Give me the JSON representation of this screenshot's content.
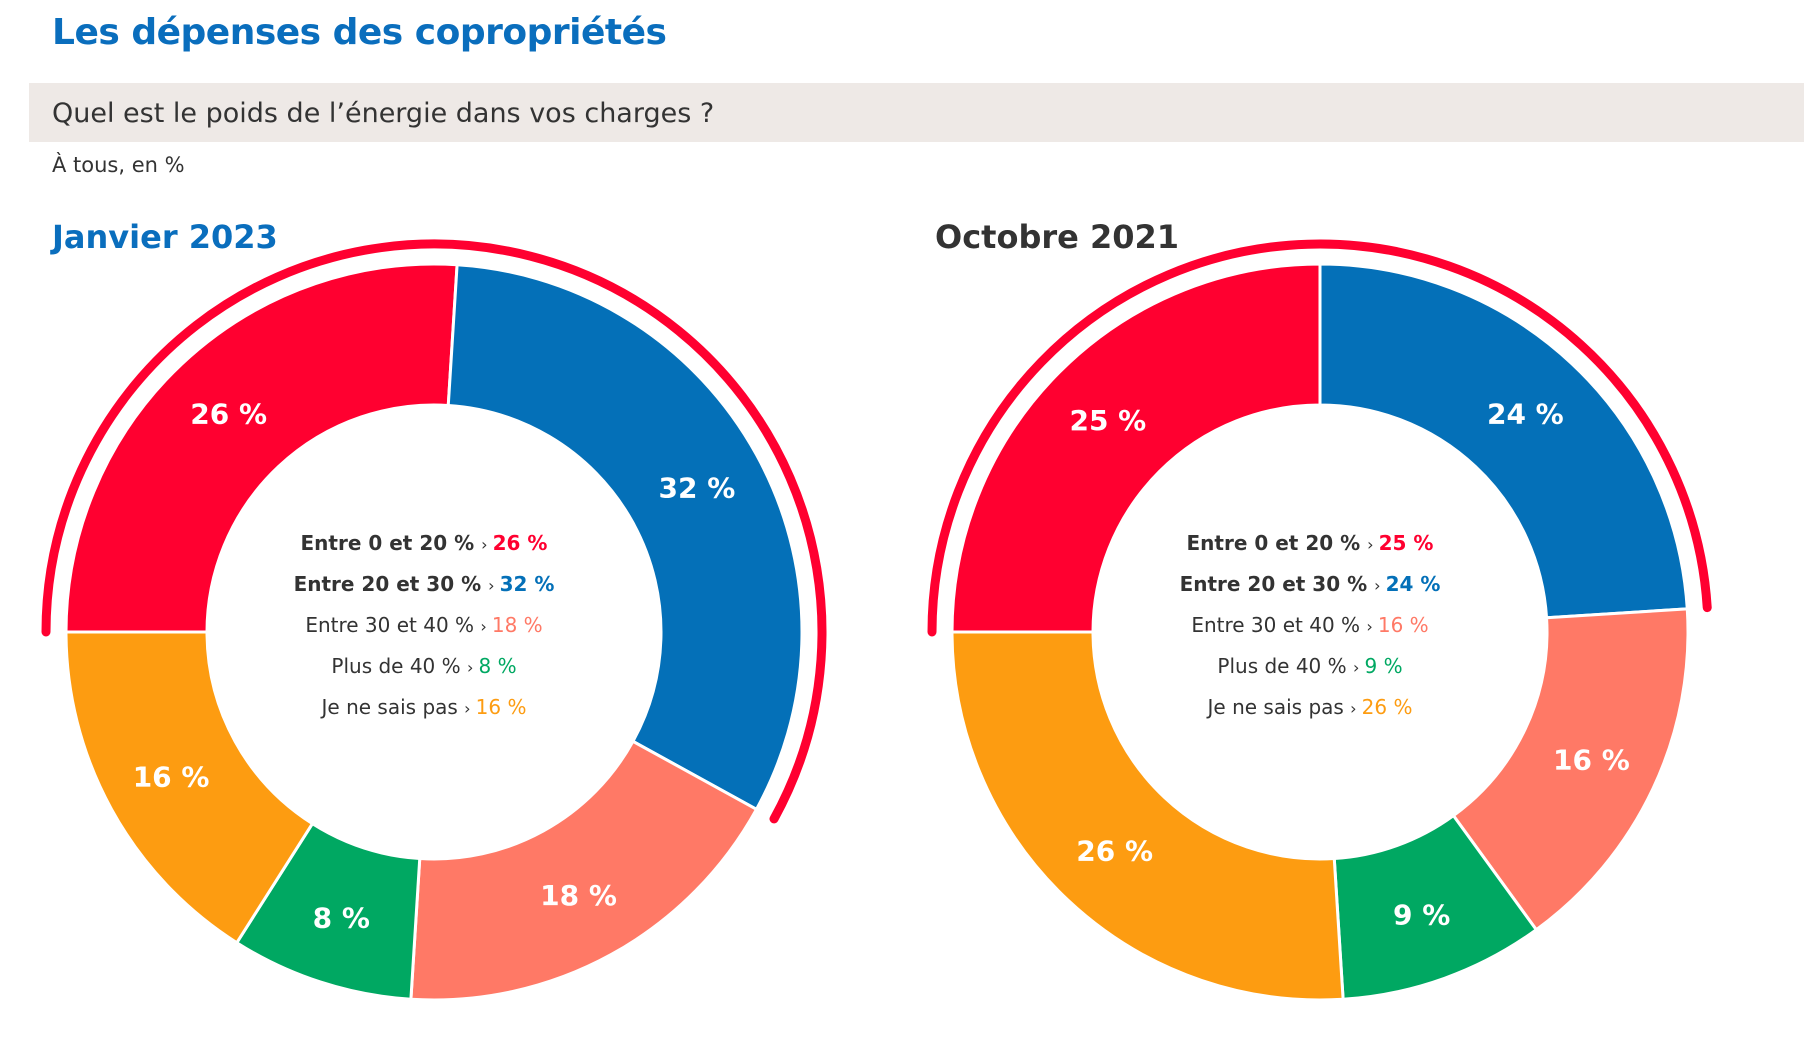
{
  "header": {
    "title": "Les dépenses des copropriétés",
    "question": "Quel est le poids de l’énergie dans vos charges ?",
    "base": "À tous, en %"
  },
  "colors": {
    "title_blue": "#0a6ebd",
    "red": "#ff0030",
    "blue": "#0470b8",
    "salmon": "#ff7966",
    "green": "#00a862",
    "orange": "#fd9c11",
    "band": "#eee9e6",
    "text": "#333333"
  },
  "legend_separator": "›",
  "chart_data": [
    {
      "type": "pie",
      "variant": "donut",
      "title": "Janvier 2023",
      "title_color": "#0a6ebd",
      "categories": [
        "Entre 0 et 20 %",
        "Entre 20 et 30 %",
        "Entre 30 et 40 %",
        "Plus de 40 %",
        "Je ne sais pas"
      ],
      "values": [
        26,
        32,
        18,
        8,
        16
      ],
      "value_labels": [
        "26 %",
        "32 %",
        "18 %",
        "8 %",
        "16 %"
      ],
      "colors": [
        "#ff0030",
        "#0470b8",
        "#ff7966",
        "#00a862",
        "#fd9c11"
      ],
      "bold": [
        true,
        true,
        false,
        false,
        false
      ],
      "highlight_arc": "Entre 0 et 30 %"
    },
    {
      "type": "pie",
      "variant": "donut",
      "title": "Octobre 2021",
      "title_color": "#333333",
      "categories": [
        "Entre 0 et 20 %",
        "Entre 20 et 30 %",
        "Entre 30 et 40 %",
        "Plus de 40 %",
        "Je ne sais pas"
      ],
      "values": [
        25,
        24,
        16,
        9,
        26
      ],
      "value_labels": [
        "25 %",
        "24 %",
        "16 %",
        "9 %",
        "26 %"
      ],
      "colors": [
        "#ff0030",
        "#0470b8",
        "#ff7966",
        "#00a862",
        "#fd9c11"
      ],
      "bold": [
        true,
        true,
        false,
        false,
        false
      ],
      "highlight_arc": "Entre 0 et 30 %"
    }
  ]
}
